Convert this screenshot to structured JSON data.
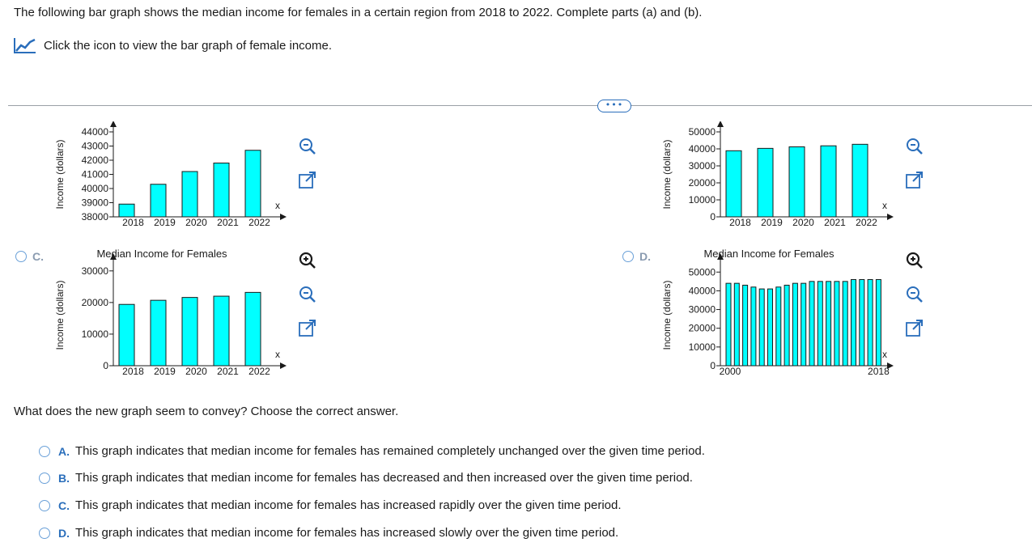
{
  "intro_text": "The following bar graph shows the median income for females in a certain region from 2018 to 2022. Complete parts (a) and (b).",
  "graph_link_text": "Click the icon to view the bar graph of female income.",
  "more_button_label": "•••",
  "icons": [
    "line-chart-icon",
    "zoom-in-icon",
    "zoom-out-icon",
    "expand-icon",
    "radio-button"
  ],
  "colors": {
    "bar_fill": "#00ffff",
    "accent": "#2a6ebb",
    "radio": "#6aa0d8"
  },
  "options_top": [
    {
      "letter": "C.",
      "radio_label": "C.",
      "label_text": ""
    },
    {
      "letter": "D.",
      "radio_label": "D.",
      "label_text": ""
    }
  ],
  "chart_data": [
    {
      "id": "top-left",
      "type": "bar",
      "title": "",
      "categories": [
        "2018",
        "2019",
        "2020",
        "2021",
        "2022"
      ],
      "values": [
        38900,
        40300,
        41200,
        41800,
        42700
      ],
      "ylabel": "Income (dollars)",
      "xlabel": "x",
      "ylim": [
        38000,
        44000
      ],
      "yticks": [
        "38000",
        "39000",
        "40000",
        "41000",
        "42000",
        "43000",
        "44000"
      ],
      "xtick_labels": [
        "2018",
        "2019",
        "2020",
        "2021",
        "2022"
      ]
    },
    {
      "id": "top-right",
      "type": "bar",
      "title": "",
      "categories": [
        "2018",
        "2019",
        "2020",
        "2021",
        "2022"
      ],
      "values": [
        38900,
        40300,
        41200,
        41800,
        42700
      ],
      "ylabel": "Income (dollars)",
      "xlabel": "x",
      "ylim": [
        0,
        50000
      ],
      "yticks": [
        "0",
        "10000",
        "20000",
        "30000",
        "40000",
        "50000"
      ],
      "xtick_labels": [
        "2018",
        "2019",
        "2020",
        "2021",
        "2022"
      ]
    },
    {
      "id": "option-c",
      "type": "bar",
      "title": "Median Income for Females",
      "categories": [
        "2018",
        "2019",
        "2020",
        "2021",
        "2022"
      ],
      "values": [
        19400,
        20700,
        21600,
        22000,
        23200
      ],
      "ylabel": "Income (dollars)",
      "xlabel": "x",
      "ylim": [
        0,
        32000
      ],
      "yticks": [
        "0",
        "10000",
        "20000",
        "30000"
      ],
      "xtick_labels": [
        "2018",
        "2019",
        "2020",
        "2021",
        "2022"
      ]
    },
    {
      "id": "option-d",
      "type": "bar",
      "title": "Median Income for Females",
      "categories": [
        "2000",
        "2001",
        "2002",
        "2003",
        "2004",
        "2005",
        "2006",
        "2007",
        "2008",
        "2009",
        "2010",
        "2011",
        "2012",
        "2013",
        "2014",
        "2015",
        "2016",
        "2017",
        "2018"
      ],
      "values": [
        44000,
        44000,
        43000,
        42000,
        41000,
        41000,
        42000,
        43000,
        44000,
        44000,
        45000,
        45000,
        45000,
        45000,
        45000,
        46000,
        46000,
        46000,
        46000
      ],
      "ylabel": "Income (dollars)",
      "xlabel": "x",
      "ylim": [
        0,
        54000
      ],
      "yticks": [
        "0",
        "10000",
        "20000",
        "30000",
        "40000",
        "50000"
      ],
      "xtick_labels": [
        "2000",
        "2018"
      ]
    }
  ],
  "question_text": "What does the new graph seem to convey? Choose the correct answer.",
  "answers": [
    {
      "letter": "A.",
      "text": "This graph indicates that median income for females has remained completely unchanged over the given time period."
    },
    {
      "letter": "B.",
      "text": "This graph indicates that median income for females has decreased and then increased over the given time period."
    },
    {
      "letter": "C.",
      "text": "This graph indicates that median income for females has increased rapidly over the given time period."
    },
    {
      "letter": "D.",
      "text": "This graph indicates that median income for females has increased slowly over the given time period."
    }
  ]
}
